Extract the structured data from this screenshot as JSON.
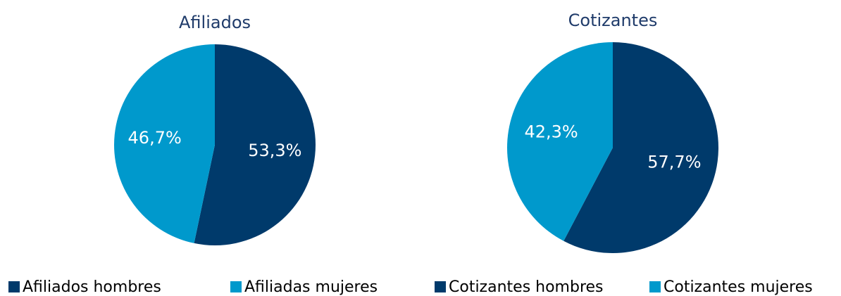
{
  "chart_data": [
    {
      "type": "pie",
      "title": "Afiliados",
      "categories": [
        "Afiliados hombres",
        "Afiliadas mujeres"
      ],
      "values": [
        53.3,
        46.7
      ],
      "value_labels": [
        "53,3%",
        "46,7%"
      ],
      "colors": [
        "#003a6b",
        "#0099cc"
      ]
    },
    {
      "type": "pie",
      "title": "Cotizantes",
      "categories": [
        "Cotizantes hombres",
        "Cotizantes mujeres"
      ],
      "values": [
        57.7,
        42.3
      ],
      "value_labels": [
        "57,7%",
        "42,3%"
      ],
      "colors": [
        "#003a6b",
        "#0099cc"
      ]
    }
  ]
}
